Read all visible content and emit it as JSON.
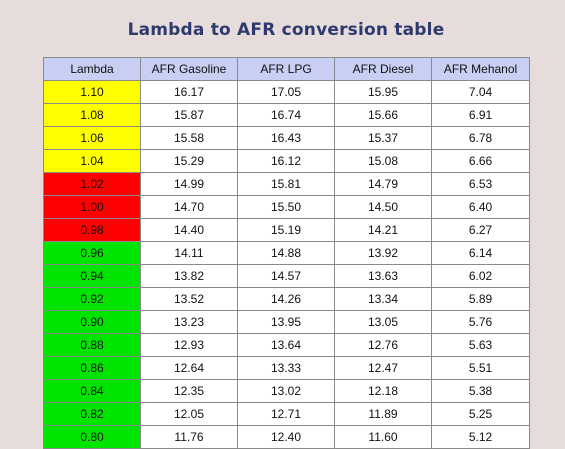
{
  "title": "Lambda to AFR conversion table",
  "colors": {
    "yellow": "#ffff00",
    "red": "#ff0000",
    "green": "#00e400",
    "header_bg": "#c8cff2",
    "title": "#2e3a6e"
  },
  "headers": [
    "Lambda",
    "AFR Gasoline",
    "AFR LPG",
    "AFR Diesel",
    "AFR Mehanol"
  ],
  "rows": [
    {
      "lambda": "1.10",
      "zone": "yellow",
      "gasoline": "16.17",
      "lpg": "17.05",
      "diesel": "15.95",
      "methanol": "7.04"
    },
    {
      "lambda": "1.08",
      "zone": "yellow",
      "gasoline": "15.87",
      "lpg": "16.74",
      "diesel": "15.66",
      "methanol": "6.91"
    },
    {
      "lambda": "1.06",
      "zone": "yellow",
      "gasoline": "15.58",
      "lpg": "16.43",
      "diesel": "15.37",
      "methanol": "6.78"
    },
    {
      "lambda": "1.04",
      "zone": "yellow",
      "gasoline": "15.29",
      "lpg": "16.12",
      "diesel": "15.08",
      "methanol": "6.66"
    },
    {
      "lambda": "1.02",
      "zone": "red",
      "gasoline": "14.99",
      "lpg": "15.81",
      "diesel": "14.79",
      "methanol": "6.53"
    },
    {
      "lambda": "1.00",
      "zone": "red",
      "gasoline": "14.70",
      "lpg": "15.50",
      "diesel": "14.50",
      "methanol": "6.40"
    },
    {
      "lambda": "0.98",
      "zone": "red",
      "gasoline": "14.40",
      "lpg": "15.19",
      "diesel": "14.21",
      "methanol": "6.27"
    },
    {
      "lambda": "0.96",
      "zone": "green",
      "gasoline": "14.11",
      "lpg": "14.88",
      "diesel": "13.92",
      "methanol": "6.14"
    },
    {
      "lambda": "0.94",
      "zone": "green",
      "gasoline": "13.82",
      "lpg": "14.57",
      "diesel": "13.63",
      "methanol": "6.02"
    },
    {
      "lambda": "0.92",
      "zone": "green",
      "gasoline": "13.52",
      "lpg": "14.26",
      "diesel": "13.34",
      "methanol": "5.89"
    },
    {
      "lambda": "0.90",
      "zone": "green",
      "gasoline": "13.23",
      "lpg": "13.95",
      "diesel": "13.05",
      "methanol": "5.76"
    },
    {
      "lambda": "0.88",
      "zone": "green",
      "gasoline": "12.93",
      "lpg": "13.64",
      "diesel": "12.76",
      "methanol": "5.63"
    },
    {
      "lambda": "0.86",
      "zone": "green",
      "gasoline": "12.64",
      "lpg": "13.33",
      "diesel": "12.47",
      "methanol": "5.51"
    },
    {
      "lambda": "0.84",
      "zone": "green",
      "gasoline": "12.35",
      "lpg": "13.02",
      "diesel": "12.18",
      "methanol": "5.38"
    },
    {
      "lambda": "0.82",
      "zone": "green",
      "gasoline": "12.05",
      "lpg": "12.71",
      "diesel": "11.89",
      "methanol": "5.25"
    },
    {
      "lambda": "0.80",
      "zone": "green",
      "gasoline": "11.76",
      "lpg": "12.40",
      "diesel": "11.60",
      "methanol": "5.12"
    }
  ]
}
